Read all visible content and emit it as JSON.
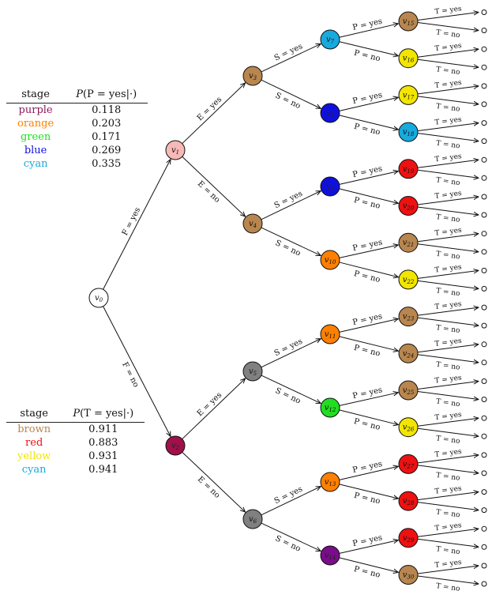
{
  "legend_p": {
    "col1": "stage",
    "col2_prefix": "P",
    "col2_body": "(P = yes|·)",
    "rows": [
      {
        "stage": "purple",
        "value": "0.118",
        "color": "#8b1a5a"
      },
      {
        "stage": "orange",
        "value": "0.203",
        "color": "#ff8000"
      },
      {
        "stage": "green",
        "value": "0.171",
        "color": "#22dd22"
      },
      {
        "stage": "blue",
        "value": "0.269",
        "color": "#1010dd"
      },
      {
        "stage": "cyan",
        "value": "0.335",
        "color": "#18aadd"
      }
    ]
  },
  "legend_t": {
    "col1": "stage",
    "col2_prefix": "P",
    "col2_body": "(T = yes|·)",
    "rows": [
      {
        "stage": "brown",
        "value": "0.911",
        "color": "#b8864e"
      },
      {
        "stage": "red",
        "value": "0.883",
        "color": "#ee1111"
      },
      {
        "stage": "yellow",
        "value": "0.931",
        "color": "#f2e600"
      },
      {
        "stage": "cyan",
        "value": "0.941",
        "color": "#18aadd"
      }
    ]
  },
  "nodes": [
    {
      "id": "v0",
      "label": "v0",
      "color": "#ffffff"
    },
    {
      "id": "v1",
      "label": "v1",
      "color": "#f7b8b8"
    },
    {
      "id": "v2",
      "label": "v2",
      "color": "#a0104a"
    },
    {
      "id": "v3",
      "label": "v3",
      "color": "#b8864e"
    },
    {
      "id": "v4",
      "label": "v4",
      "color": "#b8864e"
    },
    {
      "id": "v5",
      "label": "v5",
      "color": "#808080"
    },
    {
      "id": "v6",
      "label": "v6",
      "color": "#808080"
    },
    {
      "id": "v7",
      "label": "v7",
      "color": "#18aadd"
    },
    {
      "id": "v8",
      "label": "v8",
      "color": "#1010dd"
    },
    {
      "id": "v9",
      "label": "v9",
      "color": "#1010dd"
    },
    {
      "id": "v10",
      "label": "v10",
      "color": "#ff8000"
    },
    {
      "id": "v11",
      "label": "v11",
      "color": "#ff8000"
    },
    {
      "id": "v12",
      "label": "v12",
      "color": "#22dd22"
    },
    {
      "id": "v13",
      "label": "v13",
      "color": "#ff8000"
    },
    {
      "id": "v14",
      "label": "v14",
      "color": "#7a0d8a"
    },
    {
      "id": "v15",
      "label": "v15",
      "color": "#b8864e"
    },
    {
      "id": "v16",
      "label": "v16",
      "color": "#f2e600"
    },
    {
      "id": "v17",
      "label": "v17",
      "color": "#f2e600"
    },
    {
      "id": "v18",
      "label": "v18",
      "color": "#18aadd"
    },
    {
      "id": "v19",
      "label": "v19",
      "color": "#ee1111"
    },
    {
      "id": "v20",
      "label": "v20",
      "color": "#ee1111"
    },
    {
      "id": "v21",
      "label": "v21",
      "color": "#b8864e"
    },
    {
      "id": "v22",
      "label": "v22",
      "color": "#f2e600"
    },
    {
      "id": "v23",
      "label": "v23",
      "color": "#b8864e"
    },
    {
      "id": "v24",
      "label": "v24",
      "color": "#b8864e"
    },
    {
      "id": "v25",
      "label": "v25",
      "color": "#b8864e"
    },
    {
      "id": "v26",
      "label": "v26",
      "color": "#f2e600"
    },
    {
      "id": "v27",
      "label": "v27",
      "color": "#ee1111"
    },
    {
      "id": "v28",
      "label": "v28",
      "color": "#ee1111"
    },
    {
      "id": "v29",
      "label": "v29",
      "color": "#ee1111"
    },
    {
      "id": "v30",
      "label": "v30",
      "color": "#b8864e"
    }
  ],
  "edges": [
    {
      "from": "v0",
      "to": "v1",
      "label": "F = yes"
    },
    {
      "from": "v0",
      "to": "v2",
      "label": "F = no"
    },
    {
      "from": "v1",
      "to": "v3",
      "label": "E = yes"
    },
    {
      "from": "v1",
      "to": "v4",
      "label": "E = no"
    },
    {
      "from": "v2",
      "to": "v5",
      "label": "E = yes"
    },
    {
      "from": "v2",
      "to": "v6",
      "label": "E = no"
    },
    {
      "from": "v3",
      "to": "v7",
      "label": "S = yes"
    },
    {
      "from": "v3",
      "to": "v8",
      "label": "S = no"
    },
    {
      "from": "v4",
      "to": "v9",
      "label": "S = yes"
    },
    {
      "from": "v4",
      "to": "v10",
      "label": "S = no"
    },
    {
      "from": "v5",
      "to": "v11",
      "label": "S = yes"
    },
    {
      "from": "v5",
      "to": "v12",
      "label": "S = no"
    },
    {
      "from": "v6",
      "to": "v13",
      "label": "S = yes"
    },
    {
      "from": "v6",
      "to": "v14",
      "label": "S = no"
    },
    {
      "from": "v7",
      "to": "v15",
      "label": "P = yes"
    },
    {
      "from": "v7",
      "to": "v16",
      "label": "P = no"
    },
    {
      "from": "v8",
      "to": "v17",
      "label": "P = yes"
    },
    {
      "from": "v8",
      "to": "v18",
      "label": "P = no"
    },
    {
      "from": "v9",
      "to": "v19",
      "label": "P = yes"
    },
    {
      "from": "v9",
      "to": "v20",
      "label": "P = no"
    },
    {
      "from": "v10",
      "to": "v21",
      "label": "P = yes"
    },
    {
      "from": "v10",
      "to": "v22",
      "label": "P = no"
    },
    {
      "from": "v11",
      "to": "v23",
      "label": "P = yes"
    },
    {
      "from": "v11",
      "to": "v24",
      "label": "P = no"
    },
    {
      "from": "v12",
      "to": "v25",
      "label": "P = yes"
    },
    {
      "from": "v12",
      "to": "v26",
      "label": "P = no"
    },
    {
      "from": "v13",
      "to": "v27",
      "label": "P = yes"
    },
    {
      "from": "v13",
      "to": "v28",
      "label": "P = no"
    },
    {
      "from": "v14",
      "to": "v29",
      "label": "P = yes"
    },
    {
      "from": "v14",
      "to": "v30",
      "label": "P = no"
    }
  ],
  "leaf_edge_labels": {
    "yes": "T = yes",
    "no": "T = no"
  }
}
